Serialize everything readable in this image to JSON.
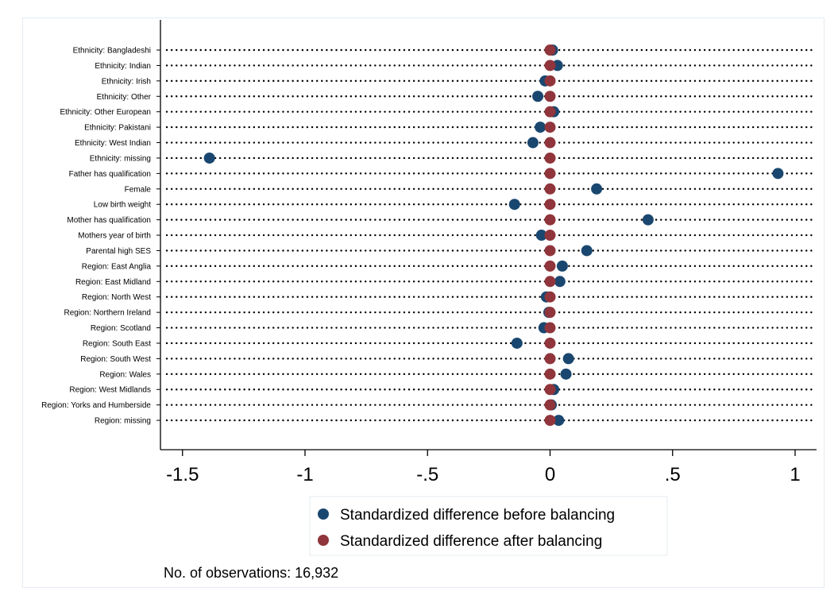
{
  "chart_data": {
    "type": "scatter",
    "categories": [
      "Ethnicity: Bangladeshi",
      "Ethnicity: Indian",
      "Ethnicity: Irish",
      "Ethnicity: Other",
      "Ethnicity: Other European",
      "Ethnicity: Pakistani",
      "Ethnicity: West Indian",
      "Ethnicity: missing",
      "Father has qualification",
      "Female",
      "Low birth weight",
      "Mother has qualification",
      "Mothers year of birth",
      "Parental high SES",
      "Region: East Anglia",
      "Region: East Midland",
      "Region: North West",
      "Region: Northern Ireland",
      "Region: Scotland",
      "Region: South East",
      "Region: South West",
      "Region: Wales",
      "Region: West Midlands",
      "Region: Yorks and Humberside",
      "Region: missing"
    ],
    "series": [
      {
        "name": "Standardized difference before balancing",
        "color": "#1a476f",
        "values": [
          0.01,
          0.03,
          -0.02,
          -0.05,
          0.015,
          -0.04,
          -0.07,
          -1.39,
          0.93,
          0.19,
          -0.145,
          0.4,
          -0.035,
          0.15,
          0.05,
          0.04,
          -0.015,
          -0.005,
          -0.025,
          -0.135,
          0.075,
          0.065,
          0.015,
          0.005,
          0.035
        ]
      },
      {
        "name": "Standardized difference after balancing",
        "color": "#90353b",
        "values": [
          0,
          0,
          0,
          0,
          0,
          0,
          0,
          0,
          0,
          0,
          0,
          0,
          0,
          0,
          0,
          0,
          0,
          0,
          0,
          0,
          0,
          0,
          0,
          0,
          0
        ]
      }
    ],
    "xticks": [
      -1.5,
      -1,
      -0.5,
      0,
      0.5,
      1
    ],
    "xtick_labels": [
      "-1.5",
      "-1",
      "-.5",
      "0",
      ".5",
      "1"
    ],
    "xlim": [
      -1.59,
      1.09
    ],
    "grid": "dotted row lines",
    "legend_position": "bottom"
  },
  "footnote": "No. of observations: 16,932"
}
